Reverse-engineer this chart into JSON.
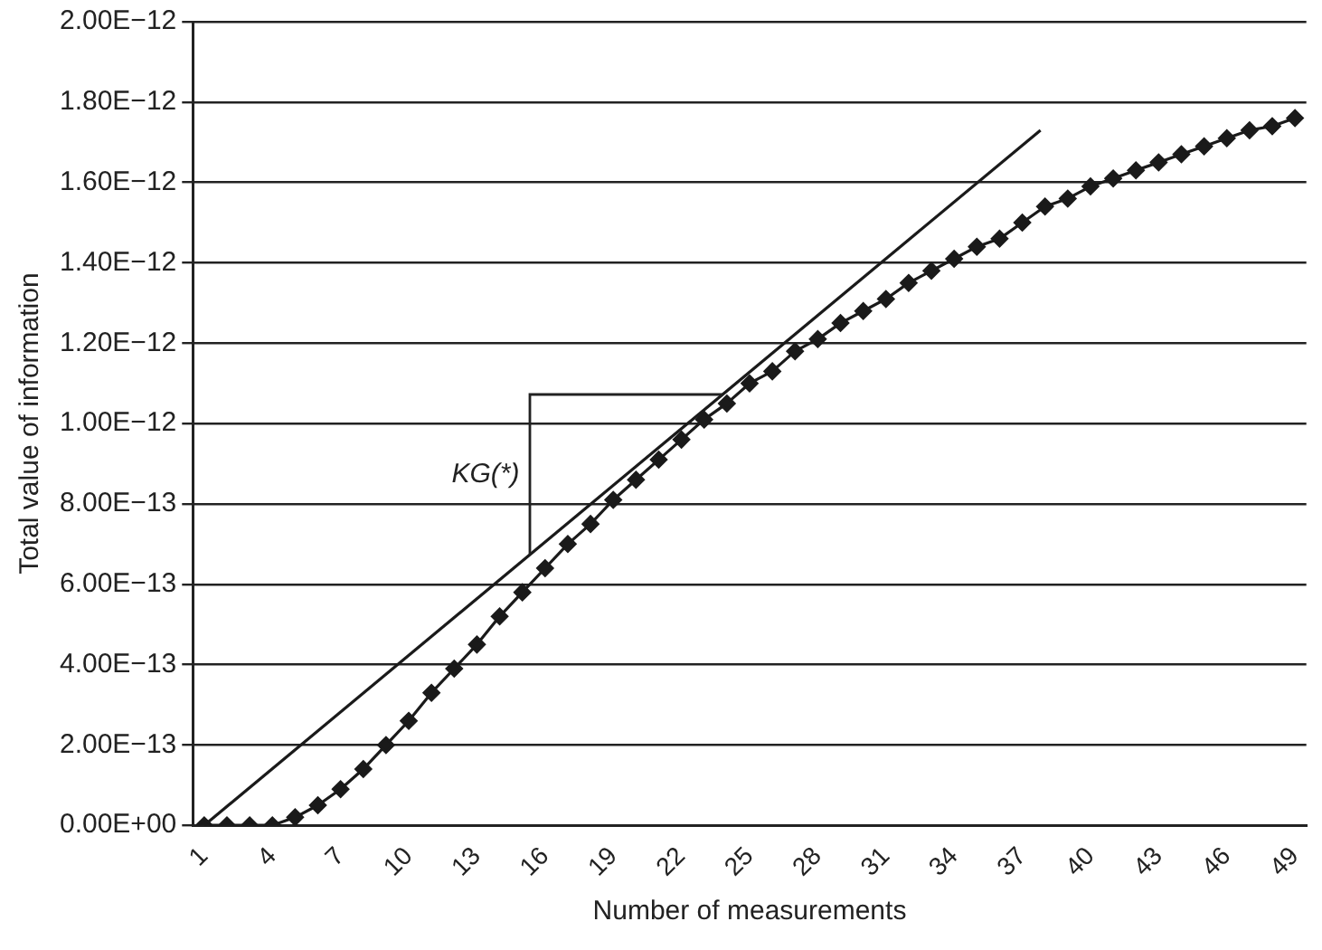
{
  "chart_data": {
    "type": "line",
    "xlabel": "Number of measurements",
    "ylabel": "Total value of information",
    "x": [
      1,
      2,
      3,
      4,
      5,
      6,
      7,
      8,
      9,
      10,
      11,
      12,
      13,
      14,
      15,
      16,
      17,
      18,
      19,
      20,
      21,
      22,
      23,
      24,
      25,
      26,
      27,
      28,
      29,
      30,
      31,
      32,
      33,
      34,
      35,
      36,
      37,
      38,
      39,
      40,
      41,
      42,
      43,
      44,
      45,
      46,
      47,
      48,
      49
    ],
    "xlim": [
      0.5,
      49.5
    ],
    "xticks": [
      1,
      4,
      7,
      10,
      13,
      16,
      19,
      22,
      25,
      28,
      31,
      34,
      37,
      40,
      43,
      46,
      49
    ],
    "ylim": [
      0,
      2e-12
    ],
    "yticks": [
      {
        "value": 0,
        "label": "0.00E+00"
      },
      {
        "value": 2e-13,
        "label": "2.00E−13"
      },
      {
        "value": 4e-13,
        "label": "4.00E−13"
      },
      {
        "value": 6e-13,
        "label": "6.00E−13"
      },
      {
        "value": 8e-13,
        "label": "8.00E−13"
      },
      {
        "value": 1e-12,
        "label": "1.00E−12"
      },
      {
        "value": 1.2e-12,
        "label": "1.20E−12"
      },
      {
        "value": 1.4e-12,
        "label": "1.40E−12"
      },
      {
        "value": 1.6e-12,
        "label": "1.60E−12"
      },
      {
        "value": 1.8e-12,
        "label": "1.80E−12"
      },
      {
        "value": 2e-12,
        "label": "2.00E−12"
      }
    ],
    "grid": "y",
    "marker": "diamond",
    "line_style": "solid",
    "series": [
      {
        "color": "#1a1a1a",
        "values": [
          0,
          0,
          0,
          0,
          2e-14,
          5e-14,
          9e-14,
          1.4e-13,
          2e-13,
          2.6e-13,
          3.3e-13,
          3.9e-13,
          4.5e-13,
          5.2e-13,
          5.8e-13,
          6.4e-13,
          7e-13,
          7.5e-13,
          8.1e-13,
          8.6e-13,
          9.1e-13,
          9.6e-13,
          1.01e-12,
          1.05e-12,
          1.1e-12,
          1.13e-12,
          1.18e-12,
          1.21e-12,
          1.25e-12,
          1.28e-12,
          1.31e-12,
          1.35e-12,
          1.38e-12,
          1.41e-12,
          1.44e-12,
          1.46e-12,
          1.5e-12,
          1.54e-12,
          1.56e-12,
          1.59e-12,
          1.61e-12,
          1.63e-12,
          1.65e-12,
          1.67e-12,
          1.69e-12,
          1.71e-12,
          1.73e-12,
          1.74e-12,
          1.76e-12
        ]
      },
      {
        "type": "line",
        "marker": "none",
        "color": "#1a1a1a",
        "x": [
          1,
          37.8
        ],
        "values": [
          0,
          1.73e-12
        ]
      }
    ],
    "annotations": [
      "KG(*)"
    ]
  }
}
